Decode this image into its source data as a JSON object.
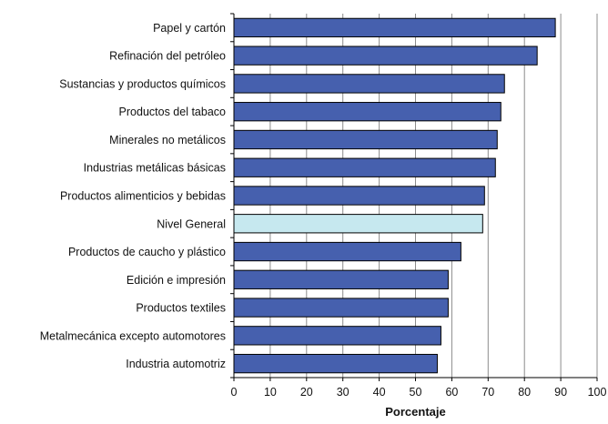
{
  "chart_data": {
    "type": "bar",
    "orientation": "horizontal",
    "categories": [
      "Papel y cartón",
      "Refinación del petróleo",
      "Sustancias y productos químicos",
      "Productos del tabaco",
      "Minerales no metálicos",
      "Industrias metálicas básicas",
      "Productos alimenticios y bebidas",
      "Nivel General",
      "Productos de caucho y plástico",
      "Edición e impresión",
      "Productos textiles",
      "Metalmecánica excepto automotores",
      "Industria automotriz"
    ],
    "values": [
      88.5,
      83.5,
      74.5,
      73.5,
      72.5,
      72,
      69,
      68.5,
      62.5,
      59,
      59,
      57,
      56
    ],
    "highlight_category": "Nivel General",
    "xlabel": "Porcentaje",
    "ylabel": "",
    "xlim": [
      0,
      100
    ],
    "x_ticks": [
      "0",
      "10",
      "20",
      "30",
      "40",
      "50",
      "60",
      "70",
      "80",
      "90",
      "100"
    ],
    "grid": "vertical",
    "colors": {
      "bar": "#4660AE",
      "bar_highlight": "#C6E8EF",
      "bar_border": "#000000",
      "grid": "#8C8C8C",
      "axis": "#000000"
    }
  }
}
